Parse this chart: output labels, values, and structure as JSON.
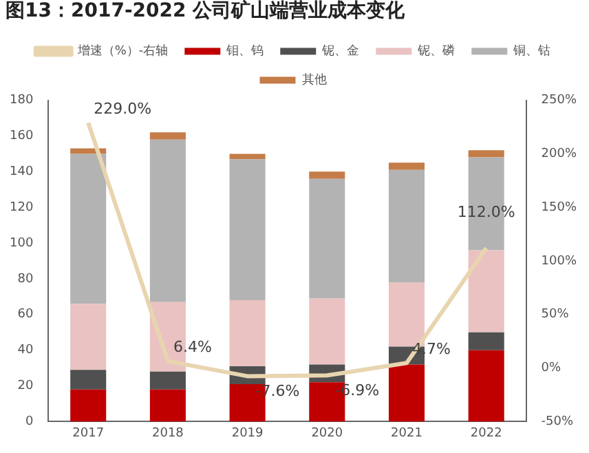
{
  "chart_data": {
    "type": "bar",
    "title": "图13：2017-2022 公司矿山端营业成本变化",
    "categories": [
      "2017",
      "2018",
      "2019",
      "2020",
      "2021",
      "2022"
    ],
    "stacked": true,
    "legend": "top",
    "grid": false,
    "series": [
      {
        "name": "钼、钨",
        "color": "#c00000",
        "values": [
          18,
          18,
          21,
          22,
          32,
          40
        ]
      },
      {
        "name": "铌、金",
        "color": "#505050",
        "values": [
          11,
          10,
          10,
          10,
          10,
          10
        ]
      },
      {
        "name": "铌、磷",
        "color": "#eac2c2",
        "values": [
          37,
          39,
          37,
          37,
          36,
          46
        ]
      },
      {
        "name": "铜、钴",
        "color": "#b3b3b3",
        "values": [
          84,
          91,
          79,
          67,
          63,
          52
        ]
      },
      {
        "name": "其他",
        "color": "#c47c48",
        "values": [
          3,
          4,
          3,
          4,
          4,
          4
        ]
      },
      {
        "name": "增速（%）-右轴",
        "type": "line",
        "axis": "y2",
        "color": "#e8d5b0",
        "values": [
          229.0,
          6.4,
          -7.6,
          -6.9,
          4.7,
          112.0
        ],
        "value_labels": [
          "229.0%",
          "6.4%",
          "-7.6%",
          "-6.9%",
          "4.7%",
          "112.0%"
        ]
      }
    ],
    "ylim": [
      0,
      180
    ],
    "yticks": [
      0,
      20,
      40,
      60,
      80,
      100,
      120,
      140,
      160,
      180
    ],
    "y2lim": [
      -50,
      250
    ],
    "y2ticks": [
      {
        "value": -50,
        "label": "-50%"
      },
      {
        "value": 0,
        "label": "0%"
      },
      {
        "value": 50,
        "label": "50%"
      },
      {
        "value": 100,
        "label": "100%"
      },
      {
        "value": 150,
        "label": "150%"
      },
      {
        "value": 200,
        "label": "200%"
      },
      {
        "value": 250,
        "label": "250%"
      }
    ]
  }
}
